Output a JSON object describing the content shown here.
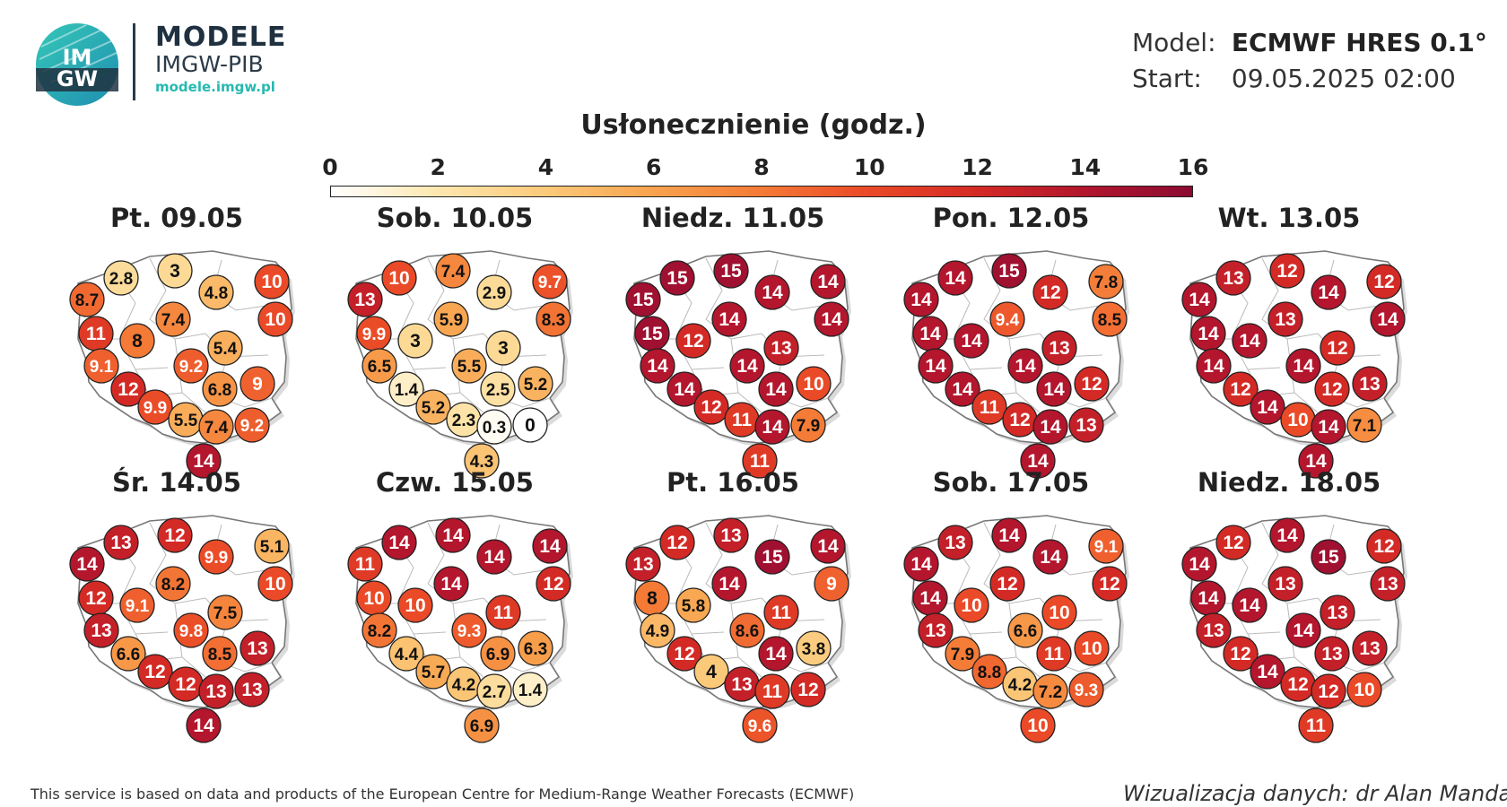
{
  "header": {
    "logo_text": "IM GW",
    "brand_title": "MODELE",
    "brand_sub": "IMGW-PIB",
    "brand_url": "modele.imgw.pl"
  },
  "model_info": {
    "model_label": "Model:",
    "model_value": "ECMWF HRES 0.1°",
    "start_label": "Start:",
    "start_value": "09.05.2025 02:00"
  },
  "title": "Usłonecznienie (godz.)",
  "scale": {
    "min": 0,
    "max": 16,
    "ticks": [
      "0",
      "2",
      "4",
      "6",
      "8",
      "10",
      "12",
      "14",
      "16"
    ],
    "colors": [
      "#ffffff",
      "#fde8b0",
      "#fbc97a",
      "#f8a44f",
      "#f47a36",
      "#ea4a27",
      "#d42a25",
      "#b3162d",
      "#8c0a32"
    ]
  },
  "days": [
    {
      "label": "Pt. 09.05",
      "values": [
        "2.8",
        "3",
        "10",
        "8.7",
        "4.8",
        "10",
        "7.4",
        "11",
        "8",
        "5.4",
        "9.1",
        "9.2",
        "9",
        "12",
        "6.8",
        "9.9",
        "5.5",
        "7.4",
        "9.2",
        "14"
      ]
    },
    {
      "label": "Sob. 10.05",
      "values": [
        "10",
        "7.4",
        "9.7",
        "13",
        "2.9",
        "8.3",
        "5.9",
        "9.9",
        "3",
        "3",
        "6.5",
        "5.5",
        "5.2",
        "1.4",
        "2.5",
        "5.2",
        "2.3",
        "0.3",
        "0",
        "4.3"
      ]
    },
    {
      "label": "Niedz. 11.05",
      "values": [
        "15",
        "15",
        "14",
        "15",
        "14",
        "14",
        "14",
        "15",
        "12",
        "13",
        "14",
        "14",
        "10",
        "14",
        "14",
        "12",
        "11",
        "14",
        "7.9",
        "11"
      ]
    },
    {
      "label": "Pon. 12.05",
      "values": [
        "14",
        "15",
        "7.8",
        "14",
        "12",
        "8.5",
        "9.4",
        "14",
        "14",
        "13",
        "14",
        "14",
        "12",
        "14",
        "14",
        "11",
        "12",
        "14",
        "13",
        "14"
      ]
    },
    {
      "label": "Wt. 13.05",
      "values": [
        "13",
        "12",
        "12",
        "14",
        "14",
        "14",
        "13",
        "14",
        "14",
        "12",
        "14",
        "14",
        "13",
        "12",
        "12",
        "14",
        "10",
        "14",
        "7.1",
        "14"
      ]
    },
    {
      "label": "Śr. 14.05",
      "values": [
        "13",
        "12",
        "5.1",
        "14",
        "9.9",
        "10",
        "8.2",
        "12",
        "9.1",
        "7.5",
        "13",
        "9.8",
        "13",
        "6.6",
        "8.5",
        "12",
        "12",
        "13",
        "13",
        "14"
      ]
    },
    {
      "label": "Czw. 15.05",
      "values": [
        "14",
        "14",
        "14",
        "11",
        "14",
        "12",
        "14",
        "10",
        "10",
        "11",
        "8.2",
        "9.3",
        "6.3",
        "4.4",
        "6.9",
        "5.7",
        "4.2",
        "2.7",
        "1.4",
        "6.9"
      ]
    },
    {
      "label": "Pt. 16.05",
      "values": [
        "12",
        "13",
        "14",
        "13",
        "15",
        "9",
        "14",
        "8",
        "5.8",
        "11",
        "4.9",
        "8.6",
        "3.8",
        "12",
        "14",
        "4",
        "13",
        "11",
        "12",
        "9.6"
      ]
    },
    {
      "label": "Sob. 17.05",
      "values": [
        "13",
        "14",
        "9.1",
        "14",
        "14",
        "12",
        "12",
        "14",
        "10",
        "10",
        "13",
        "6.6",
        "10",
        "7.9",
        "11",
        "8.8",
        "4.2",
        "7.2",
        "9.3",
        "10"
      ]
    },
    {
      "label": "Niedz. 18.05",
      "values": [
        "12",
        "14",
        "12",
        "14",
        "15",
        "13",
        "13",
        "14",
        "14",
        "13",
        "13",
        "14",
        "13",
        "12",
        "13",
        "14",
        "12",
        "12",
        "10",
        "11"
      ]
    }
  ],
  "footer": {
    "left": "This service is based on data and products of the European Centre for Medium-Range Weather Forecasts (ECMWF)",
    "right": "Wizualizacja danych: dr Alan Mandal"
  }
}
